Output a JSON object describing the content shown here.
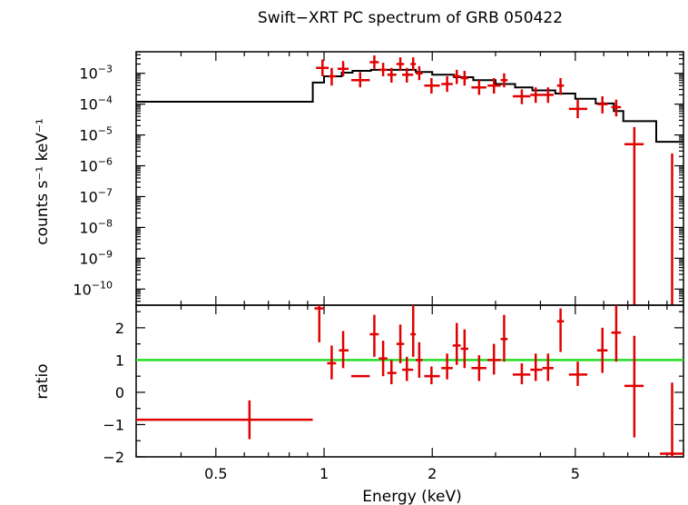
{
  "chart_data": [
    {
      "type": "scatter",
      "panel": "top",
      "title": "Swift−XRT PC spectrum of GRB 050422",
      "ylabel": "counts s⁻¹ keV⁻¹",
      "yscale": "log",
      "xscale": "log",
      "xlim": [
        0.3,
        10
      ],
      "ylim": [
        3e-11,
        0.005
      ],
      "ytick_labels": [
        {
          "value": 0.001,
          "base": "10",
          "exp": "−3"
        },
        {
          "value": 0.0001,
          "base": "10",
          "exp": "−4"
        },
        {
          "value": 1e-05,
          "base": "10",
          "exp": "−5"
        },
        {
          "value": 1e-06,
          "base": "10",
          "exp": "−6"
        },
        {
          "value": 1e-07,
          "base": "10",
          "exp": "−7"
        },
        {
          "value": 1e-08,
          "base": "10",
          "exp": "−8"
        },
        {
          "value": 1e-09,
          "base": "10",
          "exp": "−9"
        },
        {
          "value": 1e-10,
          "base": "10",
          "exp": "−10"
        }
      ],
      "model_step": [
        [
          0.3,
          0.00012
        ],
        [
          0.93,
          0.00012
        ],
        [
          0.93,
          0.0005
        ],
        [
          1.0,
          0.0005
        ],
        [
          1.0,
          0.0008
        ],
        [
          1.12,
          0.0008
        ],
        [
          1.12,
          0.00105
        ],
        [
          1.2,
          0.00105
        ],
        [
          1.2,
          0.0012
        ],
        [
          1.35,
          0.0012
        ],
        [
          1.35,
          0.0013
        ],
        [
          1.8,
          0.0013
        ],
        [
          1.8,
          0.0011
        ],
        [
          2.0,
          0.0011
        ],
        [
          2.0,
          0.0009
        ],
        [
          2.3,
          0.0009
        ],
        [
          2.3,
          0.00075
        ],
        [
          2.6,
          0.00075
        ],
        [
          2.6,
          0.0006
        ],
        [
          3.0,
          0.0006
        ],
        [
          3.0,
          0.00045
        ],
        [
          3.4,
          0.00045
        ],
        [
          3.4,
          0.00035
        ],
        [
          3.8,
          0.00035
        ],
        [
          3.8,
          0.00028
        ],
        [
          4.4,
          0.00028
        ],
        [
          4.4,
          0.00022
        ],
        [
          5.0,
          0.00022
        ],
        [
          5.0,
          0.00015
        ],
        [
          5.7,
          0.00015
        ],
        [
          5.7,
          0.000105
        ],
        [
          6.4,
          0.000105
        ],
        [
          6.4,
          6e-05
        ],
        [
          6.8,
          6e-05
        ],
        [
          6.8,
          2.8e-05
        ],
        [
          8.4,
          2.8e-05
        ],
        [
          8.4,
          6e-06
        ],
        [
          10.0,
          6e-06
        ]
      ],
      "points": [
        {
          "x": 0.99,
          "xlo": 0.95,
          "xhi": 1.03,
          "y": 0.0015,
          "ylo": 0.0008,
          "yhi": 0.0028
        },
        {
          "x": 1.05,
          "xlo": 1.03,
          "xhi": 1.08,
          "y": 0.0008,
          "ylo": 0.0004,
          "yhi": 0.0015
        },
        {
          "x": 1.13,
          "xlo": 1.09,
          "xhi": 1.17,
          "y": 0.0014,
          "ylo": 0.0008,
          "yhi": 0.0025
        },
        {
          "x": 1.26,
          "xlo": 1.19,
          "xhi": 1.34,
          "y": 0.0006,
          "ylo": 0.00035,
          "yhi": 0.0011
        },
        {
          "x": 1.38,
          "xlo": 1.34,
          "xhi": 1.42,
          "y": 0.0023,
          "ylo": 0.0014,
          "yhi": 0.0038
        },
        {
          "x": 1.46,
          "xlo": 1.42,
          "xhi": 1.5,
          "y": 0.0013,
          "ylo": 0.0008,
          "yhi": 0.0022
        },
        {
          "x": 1.54,
          "xlo": 1.5,
          "xhi": 1.59,
          "y": 0.0009,
          "ylo": 0.0005,
          "yhi": 0.0015
        },
        {
          "x": 1.63,
          "xlo": 1.59,
          "xhi": 1.67,
          "y": 0.002,
          "ylo": 0.0012,
          "yhi": 0.0033
        },
        {
          "x": 1.7,
          "xlo": 1.65,
          "xhi": 1.77,
          "y": 0.0009,
          "ylo": 0.0005,
          "yhi": 0.0015
        },
        {
          "x": 1.77,
          "xlo": 1.74,
          "xhi": 1.8,
          "y": 0.002,
          "ylo": 0.0012,
          "yhi": 0.0033
        },
        {
          "x": 1.84,
          "xlo": 1.8,
          "xhi": 1.88,
          "y": 0.001,
          "ylo": 0.0006,
          "yhi": 0.0017
        },
        {
          "x": 1.99,
          "xlo": 1.9,
          "xhi": 2.1,
          "y": 0.0004,
          "ylo": 0.00022,
          "yhi": 0.0007
        },
        {
          "x": 2.2,
          "xlo": 2.12,
          "xhi": 2.28,
          "y": 0.00045,
          "ylo": 0.00025,
          "yhi": 0.0008
        },
        {
          "x": 2.34,
          "xlo": 2.28,
          "xhi": 2.4,
          "y": 0.0008,
          "ylo": 0.00045,
          "yhi": 0.0013
        },
        {
          "x": 2.46,
          "xlo": 2.4,
          "xhi": 2.52,
          "y": 0.0007,
          "ylo": 0.0004,
          "yhi": 0.0012
        },
        {
          "x": 2.7,
          "xlo": 2.57,
          "xhi": 2.83,
          "y": 0.00035,
          "ylo": 0.0002,
          "yhi": 0.0006
        },
        {
          "x": 2.97,
          "xlo": 2.85,
          "xhi": 3.1,
          "y": 0.0004,
          "ylo": 0.00022,
          "yhi": 0.0007
        },
        {
          "x": 3.17,
          "xlo": 3.1,
          "xhi": 3.24,
          "y": 0.0006,
          "ylo": 0.00035,
          "yhi": 0.001
        },
        {
          "x": 3.55,
          "xlo": 3.35,
          "xhi": 3.75,
          "y": 0.00018,
          "ylo": 0.0001,
          "yhi": 0.0003
        },
        {
          "x": 3.88,
          "xlo": 3.75,
          "xhi": 4.05,
          "y": 0.0002,
          "ylo": 0.00011,
          "yhi": 0.00035
        },
        {
          "x": 4.2,
          "xlo": 4.05,
          "xhi": 4.35,
          "y": 0.0002,
          "ylo": 0.00011,
          "yhi": 0.00035
        },
        {
          "x": 4.55,
          "xlo": 4.45,
          "xhi": 4.65,
          "y": 0.0004,
          "ylo": 0.0002,
          "yhi": 0.0007
        },
        {
          "x": 5.08,
          "xlo": 4.8,
          "xhi": 5.4,
          "y": 7e-05,
          "ylo": 3.5e-05,
          "yhi": 0.00014
        },
        {
          "x": 5.95,
          "xlo": 5.75,
          "xhi": 6.15,
          "y": 0.0001,
          "ylo": 5e-05,
          "yhi": 0.00018
        },
        {
          "x": 6.5,
          "xlo": 6.3,
          "xhi": 6.7,
          "y": 8e-05,
          "ylo": 4e-05,
          "yhi": 0.00014
        },
        {
          "x": 7.3,
          "xlo": 6.85,
          "xhi": 7.75,
          "y": 5e-06,
          "ylo": 3e-11,
          "yhi": 1.8e-05
        },
        {
          "x": 9.3,
          "xlo": 9.3,
          "xhi": 9.3,
          "y": 2.5e-06,
          "ylo": 3e-11,
          "yhi": 2.5e-06
        }
      ]
    },
    {
      "type": "scatter",
      "panel": "bottom",
      "ylabel": "ratio",
      "xlabel": "Energy (keV)",
      "xscale": "log",
      "xlim": [
        0.3,
        10
      ],
      "ylim": [
        -2,
        2.7
      ],
      "unity_line": 1,
      "yticks": [
        -2,
        -1,
        0,
        1,
        2
      ],
      "ytick_labels": [
        "−2",
        "−1",
        "0",
        "1",
        "2"
      ],
      "xticks": [
        0.5,
        1,
        2,
        5
      ],
      "xtick_labels": [
        "0.5",
        "1",
        "2",
        "5"
      ],
      "points": [
        {
          "x": 0.62,
          "xlo": 0.3,
          "xhi": 0.93,
          "y": -0.85,
          "ylo": -1.45,
          "yhi": -0.25
        },
        {
          "x": 0.97,
          "xlo": 0.94,
          "xhi": 1.0,
          "y": 2.6,
          "ylo": 1.55,
          "yhi": 2.7
        },
        {
          "x": 1.05,
          "xlo": 1.02,
          "xhi": 1.08,
          "y": 0.9,
          "ylo": 0.4,
          "yhi": 1.45
        },
        {
          "x": 1.13,
          "xlo": 1.1,
          "xhi": 1.17,
          "y": 1.3,
          "ylo": 0.75,
          "yhi": 1.9
        },
        {
          "x": 1.26,
          "xlo": 1.19,
          "xhi": 1.34,
          "y": 0.5,
          "ylo": 0.5,
          "yhi": 0.5
        },
        {
          "x": 1.38,
          "xlo": 1.34,
          "xhi": 1.42,
          "y": 1.8,
          "ylo": 1.1,
          "yhi": 2.4
        },
        {
          "x": 1.46,
          "xlo": 1.42,
          "xhi": 1.5,
          "y": 1.05,
          "ylo": 0.5,
          "yhi": 1.6
        },
        {
          "x": 1.54,
          "xlo": 1.5,
          "xhi": 1.59,
          "y": 0.6,
          "ylo": 0.25,
          "yhi": 1.0
        },
        {
          "x": 1.63,
          "xlo": 1.59,
          "xhi": 1.67,
          "y": 1.5,
          "ylo": 0.9,
          "yhi": 2.1
        },
        {
          "x": 1.7,
          "xlo": 1.65,
          "xhi": 1.77,
          "y": 0.7,
          "ylo": 0.35,
          "yhi": 1.1
        },
        {
          "x": 1.77,
          "xlo": 1.74,
          "xhi": 1.8,
          "y": 1.8,
          "ylo": 1.1,
          "yhi": 2.7
        },
        {
          "x": 1.84,
          "xlo": 1.8,
          "xhi": 1.88,
          "y": 1.0,
          "ylo": 0.45,
          "yhi": 1.55
        },
        {
          "x": 1.99,
          "xlo": 1.9,
          "xhi": 2.1,
          "y": 0.5,
          "ylo": 0.25,
          "yhi": 0.8
        },
        {
          "x": 2.2,
          "xlo": 2.12,
          "xhi": 2.28,
          "y": 0.75,
          "ylo": 0.4,
          "yhi": 1.2
        },
        {
          "x": 2.34,
          "xlo": 2.28,
          "xhi": 2.4,
          "y": 1.45,
          "ylo": 0.85,
          "yhi": 2.15
        },
        {
          "x": 2.46,
          "xlo": 2.4,
          "xhi": 2.52,
          "y": 1.35,
          "ylo": 0.75,
          "yhi": 1.95
        },
        {
          "x": 2.7,
          "xlo": 2.57,
          "xhi": 2.83,
          "y": 0.75,
          "ylo": 0.35,
          "yhi": 1.15
        },
        {
          "x": 2.97,
          "xlo": 2.85,
          "xhi": 3.1,
          "y": 1.0,
          "ylo": 0.55,
          "yhi": 1.5
        },
        {
          "x": 3.17,
          "xlo": 3.1,
          "xhi": 3.24,
          "y": 1.65,
          "ylo": 0.95,
          "yhi": 2.4
        },
        {
          "x": 3.55,
          "xlo": 3.35,
          "xhi": 3.75,
          "y": 0.55,
          "ylo": 0.25,
          "yhi": 0.9
        },
        {
          "x": 3.88,
          "xlo": 3.75,
          "xhi": 4.05,
          "y": 0.7,
          "ylo": 0.35,
          "yhi": 1.2
        },
        {
          "x": 4.2,
          "xlo": 4.05,
          "xhi": 4.35,
          "y": 0.75,
          "ylo": 0.35,
          "yhi": 1.2
        },
        {
          "x": 4.55,
          "xlo": 4.45,
          "xhi": 4.65,
          "y": 2.2,
          "ylo": 1.25,
          "yhi": 2.6
        },
        {
          "x": 5.08,
          "xlo": 4.8,
          "xhi": 5.4,
          "y": 0.55,
          "ylo": 0.2,
          "yhi": 0.95
        },
        {
          "x": 5.95,
          "xlo": 5.75,
          "xhi": 6.15,
          "y": 1.3,
          "ylo": 0.6,
          "yhi": 2.0
        },
        {
          "x": 6.5,
          "xlo": 6.3,
          "xhi": 6.7,
          "y": 1.85,
          "ylo": 0.95,
          "yhi": 2.7
        },
        {
          "x": 7.3,
          "xlo": 6.85,
          "xhi": 7.75,
          "y": 0.2,
          "ylo": -1.4,
          "yhi": 1.75
        },
        {
          "x": 9.3,
          "xlo": 8.6,
          "xhi": 10.0,
          "y": -1.9,
          "ylo": -2.0,
          "yhi": 0.3
        }
      ]
    }
  ],
  "colors": {
    "data": "#e00000",
    "model": "#000000",
    "unity": "#22dd22"
  }
}
